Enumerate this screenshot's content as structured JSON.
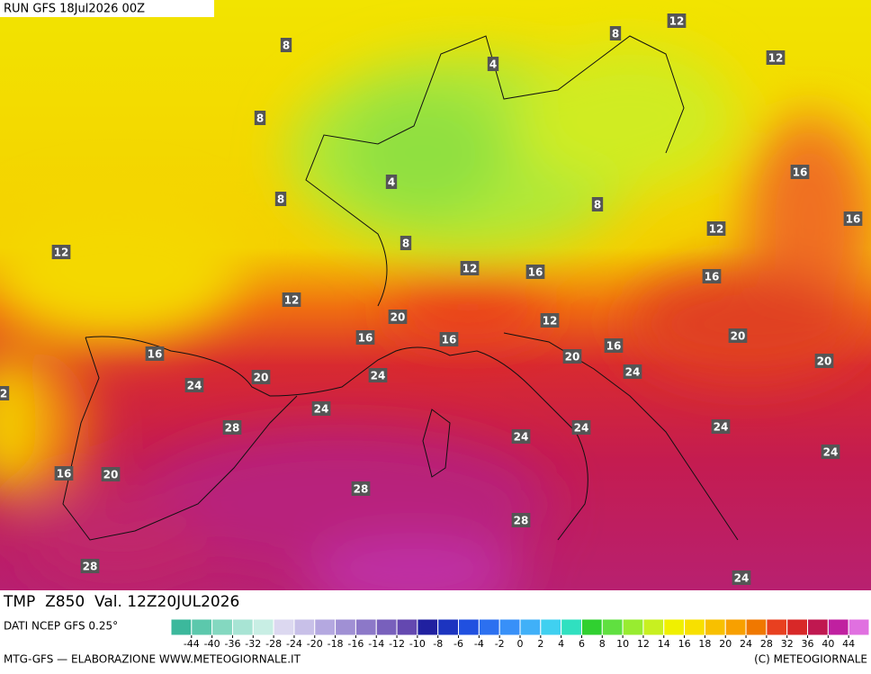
{
  "header": {
    "run": "RUN GFS 18Jul2026 00Z"
  },
  "map": {
    "contour_labels": [
      8,
      8,
      8,
      4,
      4,
      8,
      12,
      12,
      16,
      16,
      8,
      12,
      8,
      12,
      12,
      16,
      16,
      12,
      20,
      12,
      16,
      16,
      20,
      16,
      16,
      20,
      24,
      20,
      20,
      24,
      24,
      24,
      28,
      24,
      24,
      24,
      24,
      16,
      20,
      28,
      28,
      28,
      24,
      2
    ]
  },
  "footer": {
    "title": "TMP  Z850  Val. 12Z20JUL2026",
    "source": "DATI NCEP GFS 0.25°",
    "credit": "MTG-GFS — ELABORAZIONE WWW.METEOGIORNALE.IT",
    "copyright": "(C) METEOGIORNALE"
  },
  "legend": {
    "colors": [
      "#3cb89c",
      "#5cc8ac",
      "#84d8c0",
      "#a8e4d4",
      "#c8eee4",
      "#dcd8f0",
      "#c8c0e8",
      "#b4a8e0",
      "#a090d4",
      "#8c78c8",
      "#7860bc",
      "#6448b0",
      "#2020a0",
      "#1c34c0",
      "#2050e0",
      "#2c70f0",
      "#3890f8",
      "#40b0f8",
      "#40d0f0",
      "#30e0c0",
      "#30d030",
      "#60e040",
      "#98ec30",
      "#c8f020",
      "#f0f000",
      "#f8e000",
      "#f8c000",
      "#f8a000",
      "#f07800",
      "#e84020",
      "#d82828",
      "#c01850",
      "#c020a0",
      "#e070e0"
    ],
    "labels": [
      -44,
      -40,
      -36,
      -32,
      -28,
      -24,
      -20,
      -18,
      -16,
      -14,
      -12,
      -10,
      -8,
      -6,
      -4,
      -2,
      0,
      2,
      4,
      6,
      8,
      10,
      12,
      14,
      16,
      18,
      20,
      24,
      28,
      32,
      36,
      40,
      44
    ]
  }
}
